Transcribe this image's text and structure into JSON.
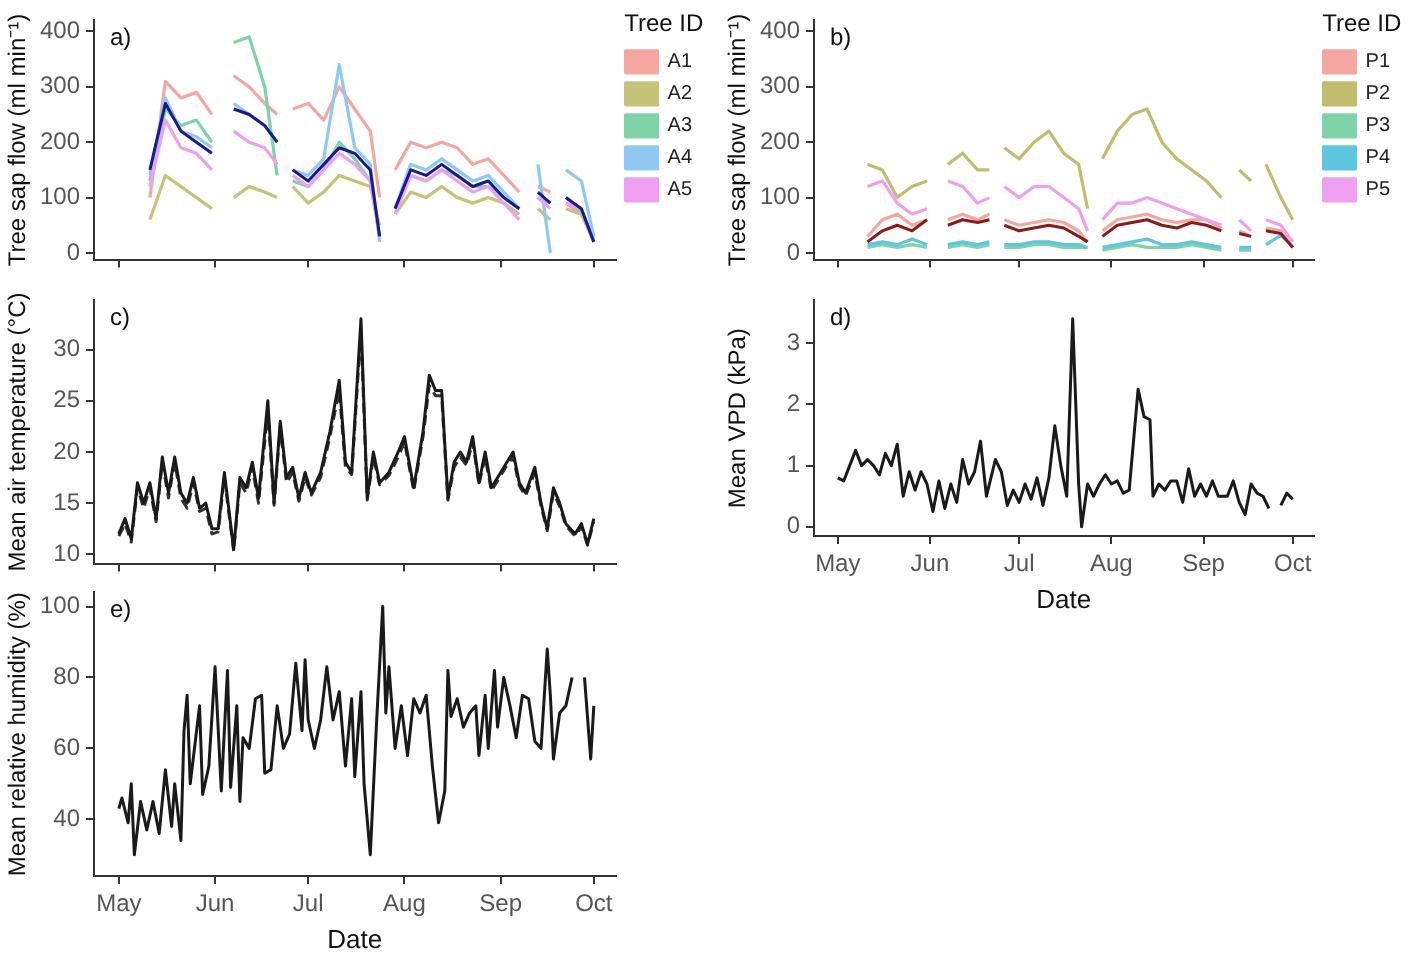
{
  "chart_data": [
    {
      "type": "line",
      "title": "a)",
      "ylabel": "Tree sap flow (ml min⁻¹)",
      "legend_title": "Tree ID",
      "legend": "right",
      "marker": "none",
      "tick_labels": "y",
      "xlim": [
        "--04-23",
        "--10-08"
      ],
      "xticks": [
        {
          "value": "--05-01",
          "label": null
        },
        {
          "value": "--06-01",
          "label": null
        },
        {
          "value": "--07-01",
          "label": null
        },
        {
          "value": "--08-01",
          "label": null
        },
        {
          "value": "--09-01",
          "label": null
        },
        {
          "value": "--10-01",
          "label": null
        }
      ],
      "ylim": [
        -12,
        420
      ],
      "yticks": [
        0,
        100,
        200,
        300,
        400
      ],
      "x": [
        "--05-11",
        "--05-16",
        "--05-21",
        "--05-26",
        "--05-31",
        "--06-03",
        "--06-07",
        "--06-12",
        "--06-17",
        "--06-21",
        "--06-23",
        "--06-26",
        "--07-01",
        "--07-06",
        "--07-11",
        "--07-16",
        "--07-21",
        "--07-24",
        "--07-26",
        "--07-29",
        "--08-03",
        "--08-08",
        "--08-13",
        "--08-18",
        "--08-23",
        "--08-28",
        "--09-02",
        "--09-07",
        "--09-10",
        "--09-13",
        "--09-17",
        "--09-19",
        "--09-22",
        "--09-27",
        "--10-01"
      ],
      "series": [
        {
          "name": "A1",
          "color": "#f4a6a0",
          "values": [
            100,
            310,
            280,
            290,
            250,
            null,
            320,
            300,
            270,
            250,
            null,
            260,
            270,
            240,
            300,
            260,
            220,
            100,
            null,
            150,
            200,
            190,
            200,
            190,
            160,
            170,
            140,
            110,
            null,
            120,
            110,
            null,
            90,
            70,
            30
          ]
        },
        {
          "name": "A2",
          "color": "#c6c27a",
          "values": [
            60,
            140,
            120,
            100,
            80,
            null,
            100,
            120,
            110,
            100,
            null,
            120,
            90,
            110,
            140,
            130,
            120,
            50,
            null,
            70,
            110,
            100,
            120,
            100,
            90,
            100,
            90,
            70,
            null,
            80,
            60,
            null,
            80,
            70,
            20
          ]
        },
        {
          "name": "A3",
          "color": "#7fd3a8",
          "values": [
            130,
            260,
            230,
            240,
            200,
            null,
            380,
            390,
            300,
            140,
            null,
            130,
            120,
            150,
            200,
            170,
            130,
            30,
            null,
            80,
            140,
            130,
            150,
            140,
            120,
            120,
            100,
            80,
            null,
            100,
            90,
            null,
            100,
            75,
            25
          ]
        },
        {
          "name": "A4",
          "color": "#8fc9f2",
          "values": [
            140,
            280,
            220,
            210,
            190,
            null,
            270,
            250,
            230,
            200,
            null,
            150,
            140,
            170,
            340,
            190,
            160,
            20,
            null,
            80,
            160,
            150,
            170,
            150,
            130,
            140,
            110,
            80,
            null,
            160,
            0,
            null,
            150,
            130,
            30
          ]
        },
        {
          "name": "A5",
          "color": "#ee9ff0",
          "values": [
            120,
            240,
            190,
            180,
            150,
            null,
            220,
            200,
            190,
            160,
            null,
            140,
            120,
            150,
            180,
            160,
            130,
            30,
            null,
            70,
            140,
            130,
            150,
            130,
            110,
            120,
            90,
            60,
            null,
            100,
            80,
            null,
            90,
            80,
            20
          ]
        },
        {
          "color": "#1a1a8c",
          "values": [
            150,
            270,
            220,
            200,
            180,
            null,
            260,
            250,
            230,
            200,
            null,
            150,
            130,
            160,
            190,
            180,
            150,
            30,
            null,
            80,
            150,
            140,
            160,
            140,
            120,
            130,
            100,
            80,
            null,
            110,
            90,
            null,
            100,
            80,
            20
          ]
        }
      ]
    },
    {
      "type": "line",
      "title": "b)",
      "ylabel": "Tree sap flow (ml min⁻¹)",
      "legend_title": "Tree ID",
      "legend": "right",
      "marker": "none",
      "tick_labels": "y",
      "xlim": [
        "--04-23",
        "--10-08"
      ],
      "xticks": [
        {
          "value": "--05-01",
          "label": null
        },
        {
          "value": "--06-01",
          "label": null
        },
        {
          "value": "--07-01",
          "label": null
        },
        {
          "value": "--08-01",
          "label": null
        },
        {
          "value": "--09-01",
          "label": null
        },
        {
          "value": "--10-01",
          "label": null
        }
      ],
      "ylim": [
        -12,
        420
      ],
      "yticks": [
        0,
        100,
        200,
        300,
        400
      ],
      "x": [
        "--05-11",
        "--05-16",
        "--05-21",
        "--05-26",
        "--05-31",
        "--06-03",
        "--06-07",
        "--06-12",
        "--06-17",
        "--06-21",
        "--06-23",
        "--06-26",
        "--07-01",
        "--07-06",
        "--07-11",
        "--07-16",
        "--07-21",
        "--07-24",
        "--07-26",
        "--07-29",
        "--08-03",
        "--08-08",
        "--08-13",
        "--08-18",
        "--08-23",
        "--08-28",
        "--09-02",
        "--09-07",
        "--09-10",
        "--09-13",
        "--09-17",
        "--09-19",
        "--09-22",
        "--09-27",
        "--10-01"
      ],
      "series": [
        {
          "name": "P1",
          "color": "#f4a6a0",
          "values": [
            30,
            60,
            70,
            50,
            60,
            null,
            60,
            70,
            60,
            70,
            null,
            60,
            50,
            55,
            60,
            55,
            40,
            20,
            null,
            40,
            60,
            65,
            70,
            60,
            55,
            60,
            60,
            45,
            null,
            40,
            30,
            null,
            45,
            40,
            10
          ]
        },
        {
          "name": "P2",
          "color": "#c2bd6e",
          "values": [
            160,
            150,
            100,
            120,
            130,
            null,
            160,
            180,
            150,
            150,
            null,
            190,
            170,
            200,
            220,
            180,
            160,
            80,
            null,
            170,
            220,
            250,
            260,
            200,
            170,
            150,
            130,
            100,
            null,
            150,
            130,
            null,
            160,
            100,
            60
          ]
        },
        {
          "name": "P3",
          "color": "#7fd3a8",
          "values": [
            10,
            15,
            10,
            15,
            10,
            null,
            10,
            15,
            10,
            15,
            null,
            10,
            10,
            15,
            15,
            10,
            10,
            10,
            null,
            5,
            10,
            15,
            10,
            10,
            10,
            15,
            10,
            5,
            null,
            5,
            5,
            null,
            null,
            null,
            null
          ]
        },
        {
          "name": "P4",
          "color": "#5fc6e0",
          "values": [
            15,
            20,
            15,
            25,
            15,
            null,
            15,
            20,
            15,
            20,
            null,
            15,
            15,
            20,
            20,
            15,
            15,
            10,
            null,
            10,
            15,
            20,
            25,
            15,
            15,
            20,
            15,
            10,
            null,
            10,
            10,
            null,
            15,
            32,
            12
          ]
        },
        {
          "name": "P5",
          "color": "#ee9ff0",
          "values": [
            120,
            130,
            90,
            70,
            80,
            null,
            130,
            120,
            90,
            100,
            null,
            120,
            100,
            120,
            120,
            100,
            80,
            40,
            null,
            60,
            90,
            90,
            100,
            90,
            80,
            70,
            60,
            50,
            null,
            60,
            40,
            null,
            60,
            50,
            20
          ]
        },
        {
          "color": "#8b1a1a",
          "values": [
            20,
            40,
            50,
            40,
            60,
            null,
            50,
            60,
            55,
            60,
            null,
            50,
            40,
            45,
            50,
            45,
            30,
            20,
            null,
            30,
            50,
            55,
            60,
            50,
            45,
            55,
            50,
            40,
            null,
            35,
            30,
            null,
            40,
            35,
            10
          ]
        }
      ]
    },
    {
      "type": "line",
      "title": "c)",
      "ylabel": "Mean air temperature (°C)",
      "marker": "none",
      "tick_labels": "y",
      "xlim": [
        "--04-23",
        "--10-08"
      ],
      "xticks": [
        {
          "value": "--05-01",
          "label": null
        },
        {
          "value": "--06-01",
          "label": null
        },
        {
          "value": "--07-01",
          "label": null
        },
        {
          "value": "--08-01",
          "label": null
        },
        {
          "value": "--09-01",
          "label": null
        },
        {
          "value": "--10-01",
          "label": null
        }
      ],
      "ylim": [
        9.1,
        34.8
      ],
      "yticks": [
        10,
        15,
        20,
        25,
        30
      ],
      "x": [
        "--05-01",
        "--05-03",
        "--05-05",
        "--05-07",
        "--05-09",
        "--05-11",
        "--05-13",
        "--05-15",
        "--05-17",
        "--05-19",
        "--05-21",
        "--05-23",
        "--05-25",
        "--05-27",
        "--05-29",
        "--05-31",
        "--06-02",
        "--06-04",
        "--06-07",
        "--06-09",
        "--06-11",
        "--06-13",
        "--06-15",
        "--06-18",
        "--06-20",
        "--06-22",
        "--06-24",
        "--06-26",
        "--06-28",
        "--06-30",
        "--07-02",
        "--07-05",
        "--07-08",
        "--07-11",
        "--07-13",
        "--07-15",
        "--07-18",
        "--07-20",
        "--07-22",
        "--07-24",
        "--07-27",
        "--07-30",
        "--08-01",
        "--08-04",
        "--08-07",
        "--08-09",
        "--08-11",
        "--08-13",
        "--08-15",
        "--08-17",
        "--08-19",
        "--08-21",
        "--08-23",
        "--08-25",
        "--08-27",
        "--08-29",
        "--09-01",
        "--09-03",
        "--09-05",
        "--09-07",
        "--09-09",
        "--09-12",
        "--09-14",
        "--09-16",
        "--09-18",
        "--09-20",
        "--09-22",
        "--09-25",
        "--09-27",
        "--09-29",
        "--10-01"
      ],
      "series": [
        {
          "color": "#333333",
          "line_style": "dashed",
          "values": [
            11.8,
            13,
            11.2,
            16.5,
            14.5,
            16.5,
            13.2,
            19,
            15.5,
            19,
            15.5,
            14.5,
            17,
            14.2,
            14.5,
            12,
            12.2,
            17.5,
            10.3,
            17,
            16,
            18.5,
            15,
            24,
            14.8,
            22.5,
            17,
            18,
            15.2,
            17.5,
            15.8,
            17.5,
            21.5,
            26,
            18.5,
            17.8,
            32,
            15.3,
            19.5,
            16.8,
            17.7,
            19.5,
            21,
            16.2,
            21.5,
            26.5,
            25.5,
            25.5,
            15.3,
            18.5,
            19.5,
            18.7,
            21,
            16.8,
            19.5,
            16.2,
            17.7,
            18.7,
            19.5,
            16.7,
            15.7,
            18,
            14.7,
            12.3,
            16,
            14.7,
            12.8,
            11.8,
            12.7,
            10.9,
            13.2
          ]
        },
        {
          "color": "#1a1a1a",
          "line_style": "solid",
          "values": [
            12,
            13.5,
            11.5,
            17,
            15,
            17,
            13.5,
            19.5,
            16,
            19.5,
            16,
            15,
            17.5,
            14.5,
            15,
            12.5,
            12.5,
            18,
            10.5,
            17.5,
            16.5,
            19,
            15.5,
            25,
            15,
            23,
            17.5,
            18.5,
            15.5,
            18,
            16,
            18,
            22,
            27,
            19,
            18,
            33,
            15.5,
            20,
            17,
            18,
            20,
            21.5,
            16.5,
            22,
            27.5,
            26,
            26,
            15.5,
            19,
            20,
            19,
            21.5,
            17,
            20,
            16.5,
            18,
            19,
            20,
            17,
            16,
            18.5,
            15,
            12.5,
            16.5,
            15,
            13,
            12,
            13,
            11,
            13.5
          ]
        }
      ]
    },
    {
      "type": "line",
      "title": "d)",
      "xlabel": "Date",
      "ylabel": "Mean VPD (kPa)",
      "marker": "none",
      "xlim": [
        "--04-23",
        "--10-08"
      ],
      "xticks": [
        {
          "value": "--05-01",
          "label": "May"
        },
        {
          "value": "--06-01",
          "label": "Jun"
        },
        {
          "value": "--07-01",
          "label": "Jul"
        },
        {
          "value": "--08-01",
          "label": "Aug"
        },
        {
          "value": "--09-01",
          "label": "Sep"
        },
        {
          "value": "--10-01",
          "label": "Oct"
        }
      ],
      "ylim": [
        -0.15,
        3.7
      ],
      "yticks": [
        0,
        1,
        2,
        3
      ],
      "x": [
        "--05-01",
        "--05-03",
        "--05-05",
        "--05-07",
        "--05-09",
        "--05-11",
        "--05-13",
        "--05-15",
        "--05-17",
        "--05-19",
        "--05-21",
        "--05-23",
        "--05-25",
        "--05-27",
        "--05-29",
        "--05-31",
        "--06-02",
        "--06-04",
        "--06-06",
        "--06-08",
        "--06-10",
        "--06-12",
        "--06-14",
        "--06-16",
        "--06-18",
        "--06-20",
        "--06-23",
        "--06-25",
        "--06-27",
        "--06-29",
        "--07-01",
        "--07-03",
        "--07-05",
        "--07-07",
        "--07-09",
        "--07-11",
        "--07-13",
        "--07-15",
        "--07-17",
        "--07-19",
        "--07-21",
        "--07-22",
        "--07-24",
        "--07-26",
        "--07-28",
        "--07-30",
        "--08-01",
        "--08-03",
        "--08-05",
        "--08-07",
        "--08-10",
        "--08-12",
        "--08-14",
        "--08-15",
        "--08-17",
        "--08-19",
        "--08-21",
        "--08-23",
        "--08-25",
        "--08-27",
        "--08-29",
        "--08-31",
        "--09-02",
        "--09-04",
        "--09-06",
        "--09-09",
        "--09-11",
        "--09-13",
        "--09-15",
        "--09-17",
        "--09-19",
        "--09-21",
        "--09-23",
        "--09-25",
        "--09-27",
        "--09-29",
        "--10-01"
      ],
      "series": [
        {
          "color": "#1a1a1a",
          "values": [
            0.8,
            0.75,
            1.0,
            1.25,
            1.0,
            1.1,
            1.0,
            0.85,
            1.2,
            1.0,
            1.35,
            0.5,
            0.9,
            0.6,
            0.9,
            0.7,
            0.25,
            0.75,
            0.3,
            0.7,
            0.4,
            1.1,
            0.7,
            0.9,
            1.4,
            0.5,
            1.1,
            0.9,
            0.35,
            0.6,
            0.4,
            0.7,
            0.45,
            0.8,
            0.35,
            0.8,
            1.65,
            1.0,
            0.5,
            3.4,
            0.7,
            0.0,
            0.7,
            0.5,
            0.7,
            0.85,
            0.7,
            0.75,
            0.55,
            0.6,
            2.25,
            1.8,
            1.75,
            0.5,
            0.7,
            0.6,
            0.75,
            0.75,
            0.4,
            0.95,
            0.5,
            0.7,
            0.5,
            0.75,
            0.5,
            0.5,
            0.75,
            0.4,
            0.2,
            0.7,
            0.55,
            0.5,
            0.3,
            null,
            0.35,
            0.55,
            0.45
          ]
        }
      ]
    },
    {
      "type": "line",
      "title": "e)",
      "xlabel": "Date",
      "ylabel": "Mean relative humidity (%)",
      "marker": "none",
      "xlim": [
        "--04-23",
        "--10-08"
      ],
      "xticks": [
        {
          "value": "--05-01",
          "label": "May"
        },
        {
          "value": "--06-01",
          "label": "Jun"
        },
        {
          "value": "--07-01",
          "label": "Jul"
        },
        {
          "value": "--08-01",
          "label": "Aug"
        },
        {
          "value": "--09-01",
          "label": "Sep"
        },
        {
          "value": "--10-01",
          "label": "Oct"
        }
      ],
      "ylim": [
        24,
        104
      ],
      "yticks": [
        40,
        60,
        80,
        100
      ],
      "x": [
        "--05-01",
        "--05-02",
        "--05-04",
        "--05-05",
        "--05-06",
        "--05-08",
        "--05-10",
        "--05-12",
        "--05-14",
        "--05-16",
        "--05-18",
        "--05-19",
        "--05-21",
        "--05-22",
        "--05-23",
        "--05-24",
        "--05-27",
        "--05-28",
        "--05-30",
        "--06-01",
        "--06-03",
        "--06-05",
        "--06-06",
        "--06-08",
        "--06-09",
        "--06-10",
        "--06-12",
        "--06-14",
        "--06-16",
        "--06-17",
        "--06-19",
        "--06-21",
        "--06-23",
        "--06-25",
        "--06-27",
        "--06-29",
        "--06-30",
        "--07-01",
        "--07-03",
        "--07-05",
        "--07-07",
        "--07-09",
        "--07-11",
        "--07-13",
        "--07-15",
        "--07-16",
        "--07-18",
        "--07-19",
        "--07-21",
        "--07-23",
        "--07-25",
        "--07-26",
        "--07-27",
        "--07-29",
        "--07-31",
        "--08-02",
        "--08-04",
        "--08-06",
        "--08-08",
        "--08-10",
        "--08-12",
        "--08-14",
        "--08-15",
        "--08-16",
        "--08-18",
        "--08-20",
        "--08-22",
        "--08-24",
        "--08-25",
        "--08-27",
        "--08-28",
        "--08-30",
        "--08-31",
        "--09-02",
        "--09-04",
        "--09-06",
        "--09-08",
        "--09-10",
        "--09-12",
        "--09-14",
        "--09-16",
        "--09-17",
        "--09-18",
        "--09-20",
        "--09-22",
        "--09-24",
        "--09-25",
        "--09-28",
        "--09-30",
        "--10-01"
      ],
      "series": [
        {
          "color": "#1a1a1a",
          "values": [
            43,
            46,
            39,
            50,
            30,
            45,
            37,
            45,
            36,
            54,
            38,
            50,
            34,
            65,
            75,
            50,
            72,
            47,
            55,
            83,
            48,
            82,
            49,
            72,
            45,
            63,
            60,
            74,
            75,
            53,
            54,
            72,
            60,
            64,
            84,
            65,
            85,
            68,
            60,
            68,
            83,
            68,
            76,
            55,
            74,
            52,
            76,
            50,
            30,
            67,
            100,
            70,
            83,
            60,
            72,
            58,
            74,
            70,
            75,
            55,
            39,
            48,
            82,
            69,
            74,
            66,
            70,
            72,
            58,
            75,
            60,
            82,
            66,
            80,
            72,
            63,
            75,
            74,
            62,
            60,
            88,
            75,
            57,
            70,
            72,
            80,
            null,
            80,
            57,
            72
          ]
        }
      ]
    }
  ]
}
